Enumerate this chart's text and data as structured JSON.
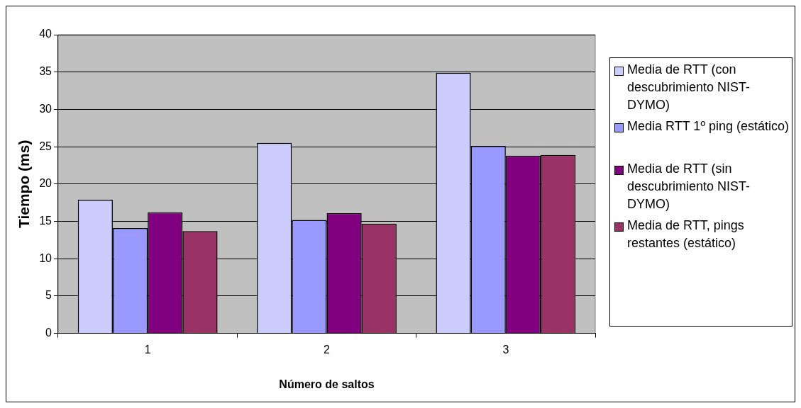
{
  "chart_data": {
    "type": "bar",
    "xlabel": "Número de saltos",
    "ylabel": "Tiempo (ms)",
    "categories": [
      "1",
      "2",
      "3"
    ],
    "series": [
      {
        "name": "Media de RTT (con descubrimiento NIST-DYMO)",
        "color": "#ccccff",
        "values": [
          17.9,
          25.5,
          34.9
        ]
      },
      {
        "name": "Media RTT 1º ping (estático)",
        "color": "#9999ff",
        "values": [
          14.1,
          15.2,
          25.1
        ]
      },
      {
        "name": "Media de RTT (sin descubrimiento NIST-DYMO)",
        "color": "#800080",
        "values": [
          16.2,
          16.1,
          23.8
        ]
      },
      {
        "name": "Media de RTT, pings restantes (estático)",
        "color": "#993366",
        "values": [
          13.7,
          14.7,
          23.9
        ]
      }
    ],
    "ylim": [
      0,
      40
    ],
    "yticks": [
      0,
      5,
      10,
      15,
      20,
      25,
      30,
      35,
      40
    ],
    "grid": "y",
    "legend": "right"
  }
}
